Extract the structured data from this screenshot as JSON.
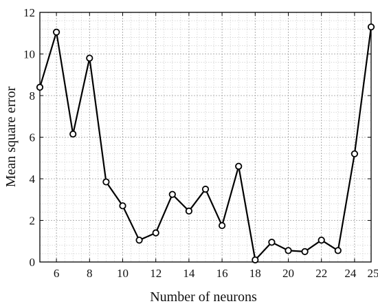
{
  "chart_data": {
    "type": "line",
    "title": "",
    "xlabel": "Number of neurons",
    "ylabel": "Mean square error",
    "xlim": [
      5,
      25
    ],
    "ylim": [
      0,
      12
    ],
    "xticks": [
      6,
      8,
      10,
      12,
      14,
      16,
      18,
      20,
      22,
      24,
      25
    ],
    "yticks": [
      0,
      2,
      4,
      6,
      8,
      10,
      12
    ],
    "grid": true,
    "minor_grid": true,
    "legend": "none",
    "series": [
      {
        "x": [
          5,
          6,
          7,
          8,
          9,
          10,
          11,
          12,
          13,
          14,
          15,
          16,
          17,
          18,
          19,
          20,
          21,
          22,
          23,
          24,
          25
        ],
        "y": [
          8.4,
          11.05,
          6.15,
          9.8,
          3.85,
          2.7,
          1.05,
          1.4,
          3.25,
          2.45,
          3.5,
          1.75,
          4.6,
          0.1,
          0.95,
          0.55,
          0.5,
          1.05,
          0.55,
          5.2,
          11.3
        ],
        "marker": "circle",
        "color": "#000000"
      }
    ]
  }
}
